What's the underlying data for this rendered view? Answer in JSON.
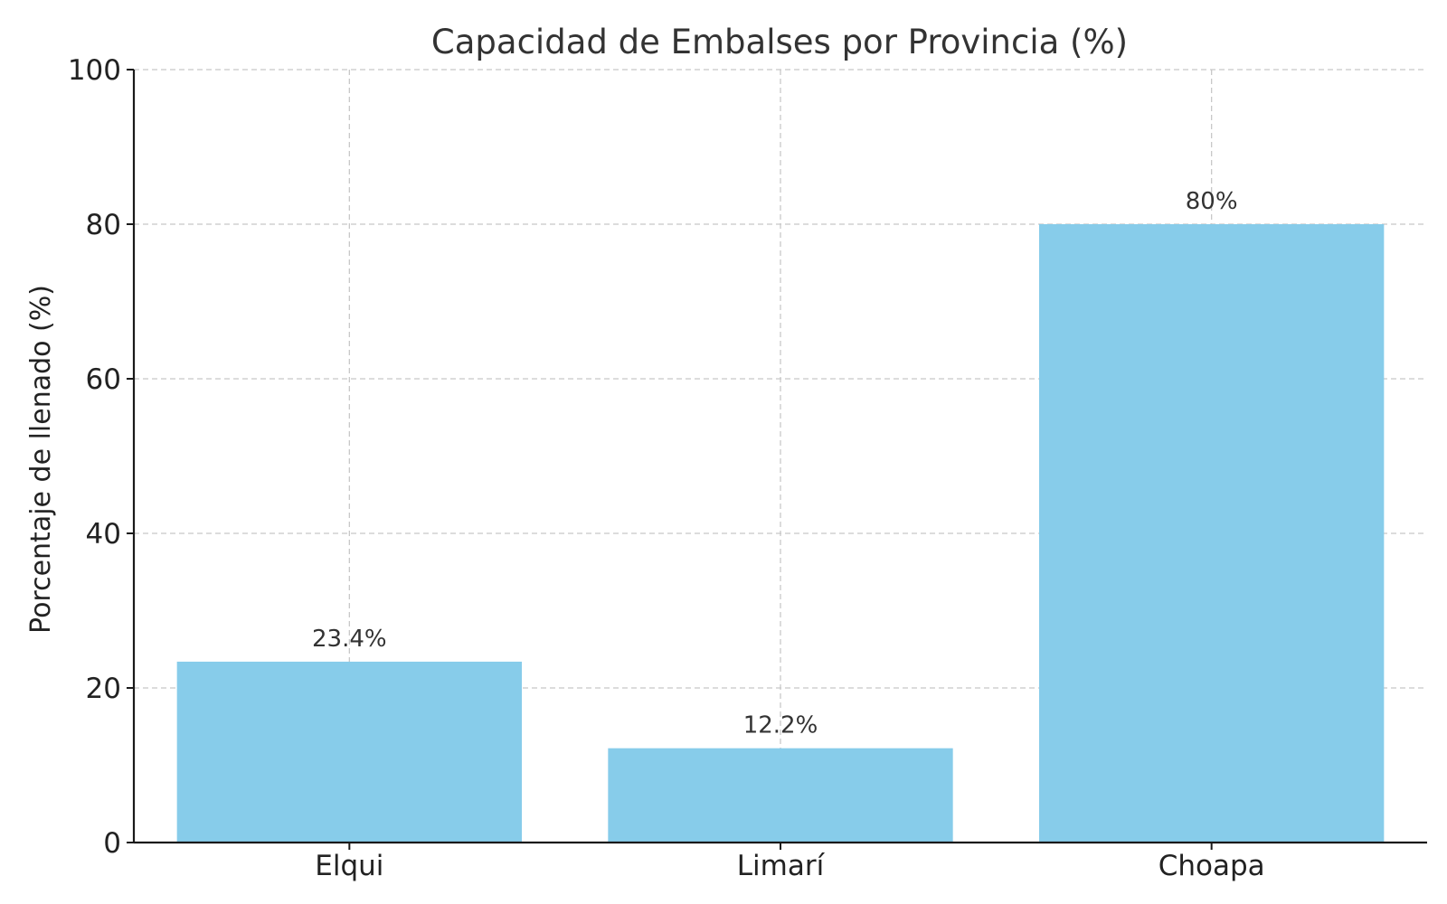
{
  "chart_data": {
    "type": "bar",
    "title": "Capacidad de Embalses por Provincia (%)",
    "xlabel": "",
    "ylabel": "Porcentaje de llenado (%)",
    "categories": [
      "Elqui",
      "Limarí",
      "Choapa"
    ],
    "values": [
      23.4,
      12.2,
      80
    ],
    "data_labels": [
      "23.4%",
      "12.2%",
      "80%"
    ],
    "ylim": [
      0,
      100
    ],
    "yticks": [
      0,
      20,
      40,
      60,
      80,
      100
    ],
    "ytick_labels": [
      "0",
      "20",
      "40",
      "60",
      "80",
      "100"
    ],
    "grid": true,
    "legend": "none",
    "colors": {
      "bar": "#87CCEA",
      "grid": "#c8c8c8",
      "axis": "#1a1a1a"
    }
  }
}
